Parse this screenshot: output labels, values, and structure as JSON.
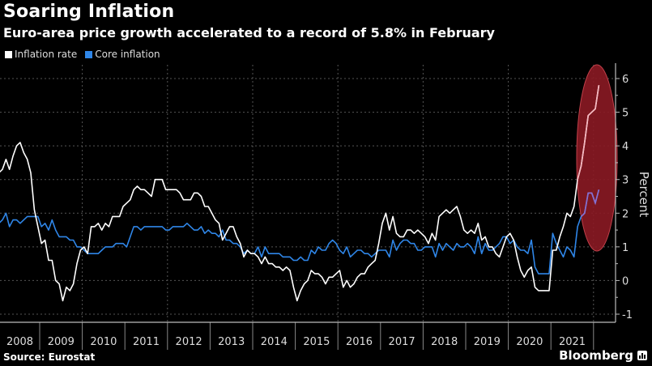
{
  "header": {
    "title": "Soaring Inflation",
    "subtitle": "Euro-area price growth accelerated to a record of 5.8% in February"
  },
  "footer": {
    "source": "Source: Eurostat",
    "brand": "Bloomberg"
  },
  "colors": {
    "inflation": "#ffffff",
    "core": "#3a7fd5",
    "highlight": "#8b1a24",
    "grid": "#555555",
    "axis": "#bbbbbb"
  },
  "chart_data": {
    "type": "line",
    "title": "Soaring Inflation",
    "subtitle": "Euro-area price growth accelerated to a record of 5.8% in February",
    "xlabel": "",
    "ylabel": "Percent",
    "ylim": [
      -1,
      6
    ],
    "yticks": [
      -1,
      0,
      1,
      2,
      3,
      4,
      5,
      6
    ],
    "x_start": "2008-01",
    "x_end": "2022-02",
    "x_frequency": "monthly",
    "year_labels": [
      "2008",
      "2009",
      "2010",
      "2011",
      "2012",
      "2013",
      "2014",
      "2015",
      "2016",
      "2017",
      "2018",
      "2019",
      "2020",
      "2021"
    ],
    "legend": [
      "Inflation rate",
      "Core inflation"
    ],
    "legend_position": "top-left",
    "grid": true,
    "annotation": "red ellipse highlighting late-2021 to Feb-2022 surge",
    "series": [
      {
        "name": "Inflation rate",
        "values": [
          3.2,
          3.3,
          3.6,
          3.3,
          3.7,
          4.0,
          4.1,
          3.8,
          3.6,
          3.2,
          2.1,
          1.6,
          1.1,
          1.2,
          0.6,
          0.6,
          0.0,
          -0.1,
          -0.6,
          -0.2,
          -0.3,
          -0.1,
          0.5,
          0.9,
          1.0,
          0.8,
          1.6,
          1.6,
          1.7,
          1.5,
          1.7,
          1.6,
          1.9,
          1.9,
          1.9,
          2.2,
          2.3,
          2.4,
          2.7,
          2.8,
          2.7,
          2.7,
          2.6,
          2.5,
          3.0,
          3.0,
          3.0,
          2.7,
          2.7,
          2.7,
          2.7,
          2.6,
          2.4,
          2.4,
          2.4,
          2.6,
          2.6,
          2.5,
          2.2,
          2.2,
          2.0,
          1.8,
          1.7,
          1.2,
          1.4,
          1.6,
          1.6,
          1.3,
          1.1,
          0.7,
          0.9,
          0.8,
          0.8,
          0.7,
          0.5,
          0.7,
          0.5,
          0.5,
          0.4,
          0.4,
          0.3,
          0.4,
          0.3,
          -0.2,
          -0.6,
          -0.3,
          -0.1,
          0.0,
          0.3,
          0.2,
          0.2,
          0.1,
          -0.1,
          0.1,
          0.1,
          0.2,
          0.3,
          -0.2,
          0.0,
          -0.2,
          -0.1,
          0.1,
          0.2,
          0.2,
          0.4,
          0.5,
          0.6,
          1.1,
          1.7,
          2.0,
          1.5,
          1.9,
          1.4,
          1.3,
          1.3,
          1.5,
          1.5,
          1.4,
          1.5,
          1.4,
          1.3,
          1.1,
          1.4,
          1.2,
          1.9,
          2.0,
          2.1,
          2.0,
          2.1,
          2.2,
          1.9,
          1.5,
          1.4,
          1.5,
          1.4,
          1.7,
          1.2,
          1.3,
          1.0,
          1.0,
          0.8,
          0.7,
          1.0,
          1.3,
          1.4,
          1.2,
          0.7,
          0.3,
          0.1,
          0.3,
          0.4,
          -0.2,
          -0.3,
          -0.3,
          -0.3,
          -0.3,
          0.9,
          0.9,
          1.3,
          1.6,
          2.0,
          1.9,
          2.2,
          3.0,
          3.4,
          4.1,
          4.9,
          5.0,
          5.1,
          5.8
        ]
      },
      {
        "name": "Core inflation",
        "values": [
          1.7,
          1.8,
          2.0,
          1.6,
          1.8,
          1.8,
          1.7,
          1.8,
          1.9,
          1.9,
          1.9,
          1.9,
          1.6,
          1.7,
          1.5,
          1.8,
          1.5,
          1.3,
          1.3,
          1.3,
          1.2,
          1.2,
          1.0,
          1.0,
          0.9,
          0.8,
          0.8,
          0.8,
          0.8,
          0.9,
          1.0,
          1.0,
          1.0,
          1.1,
          1.1,
          1.1,
          1.0,
          1.3,
          1.6,
          1.6,
          1.5,
          1.6,
          1.6,
          1.6,
          1.6,
          1.6,
          1.6,
          1.5,
          1.5,
          1.6,
          1.6,
          1.6,
          1.6,
          1.7,
          1.6,
          1.5,
          1.5,
          1.6,
          1.4,
          1.5,
          1.4,
          1.4,
          1.3,
          1.5,
          1.2,
          1.2,
          1.1,
          1.1,
          1.0,
          0.8,
          0.9,
          0.8,
          0.8,
          1.0,
          0.7,
          1.0,
          0.8,
          0.8,
          0.8,
          0.8,
          0.7,
          0.7,
          0.7,
          0.6,
          0.6,
          0.7,
          0.6,
          0.6,
          0.9,
          0.8,
          1.0,
          0.9,
          0.9,
          1.1,
          1.2,
          1.1,
          0.9,
          0.8,
          1.0,
          0.7,
          0.8,
          0.9,
          0.9,
          0.8,
          0.8,
          0.7,
          0.8,
          0.9,
          0.9,
          0.9,
          0.7,
          1.2,
          0.9,
          1.1,
          1.2,
          1.2,
          1.1,
          1.1,
          0.9,
          0.9,
          1.0,
          1.0,
          1.0,
          0.7,
          1.1,
          0.9,
          1.1,
          1.0,
          0.9,
          1.1,
          1.0,
          1.0,
          1.1,
          1.0,
          0.8,
          1.3,
          0.8,
          1.1,
          0.9,
          0.9,
          1.0,
          1.1,
          1.3,
          1.3,
          1.1,
          1.2,
          1.0,
          0.9,
          0.9,
          0.8,
          1.2,
          0.4,
          0.2,
          0.2,
          0.2,
          0.2,
          1.4,
          1.1,
          0.9,
          0.7,
          1.0,
          0.9,
          0.7,
          1.6,
          1.9,
          2.0,
          2.6,
          2.6,
          2.3,
          2.7
        ]
      }
    ]
  }
}
